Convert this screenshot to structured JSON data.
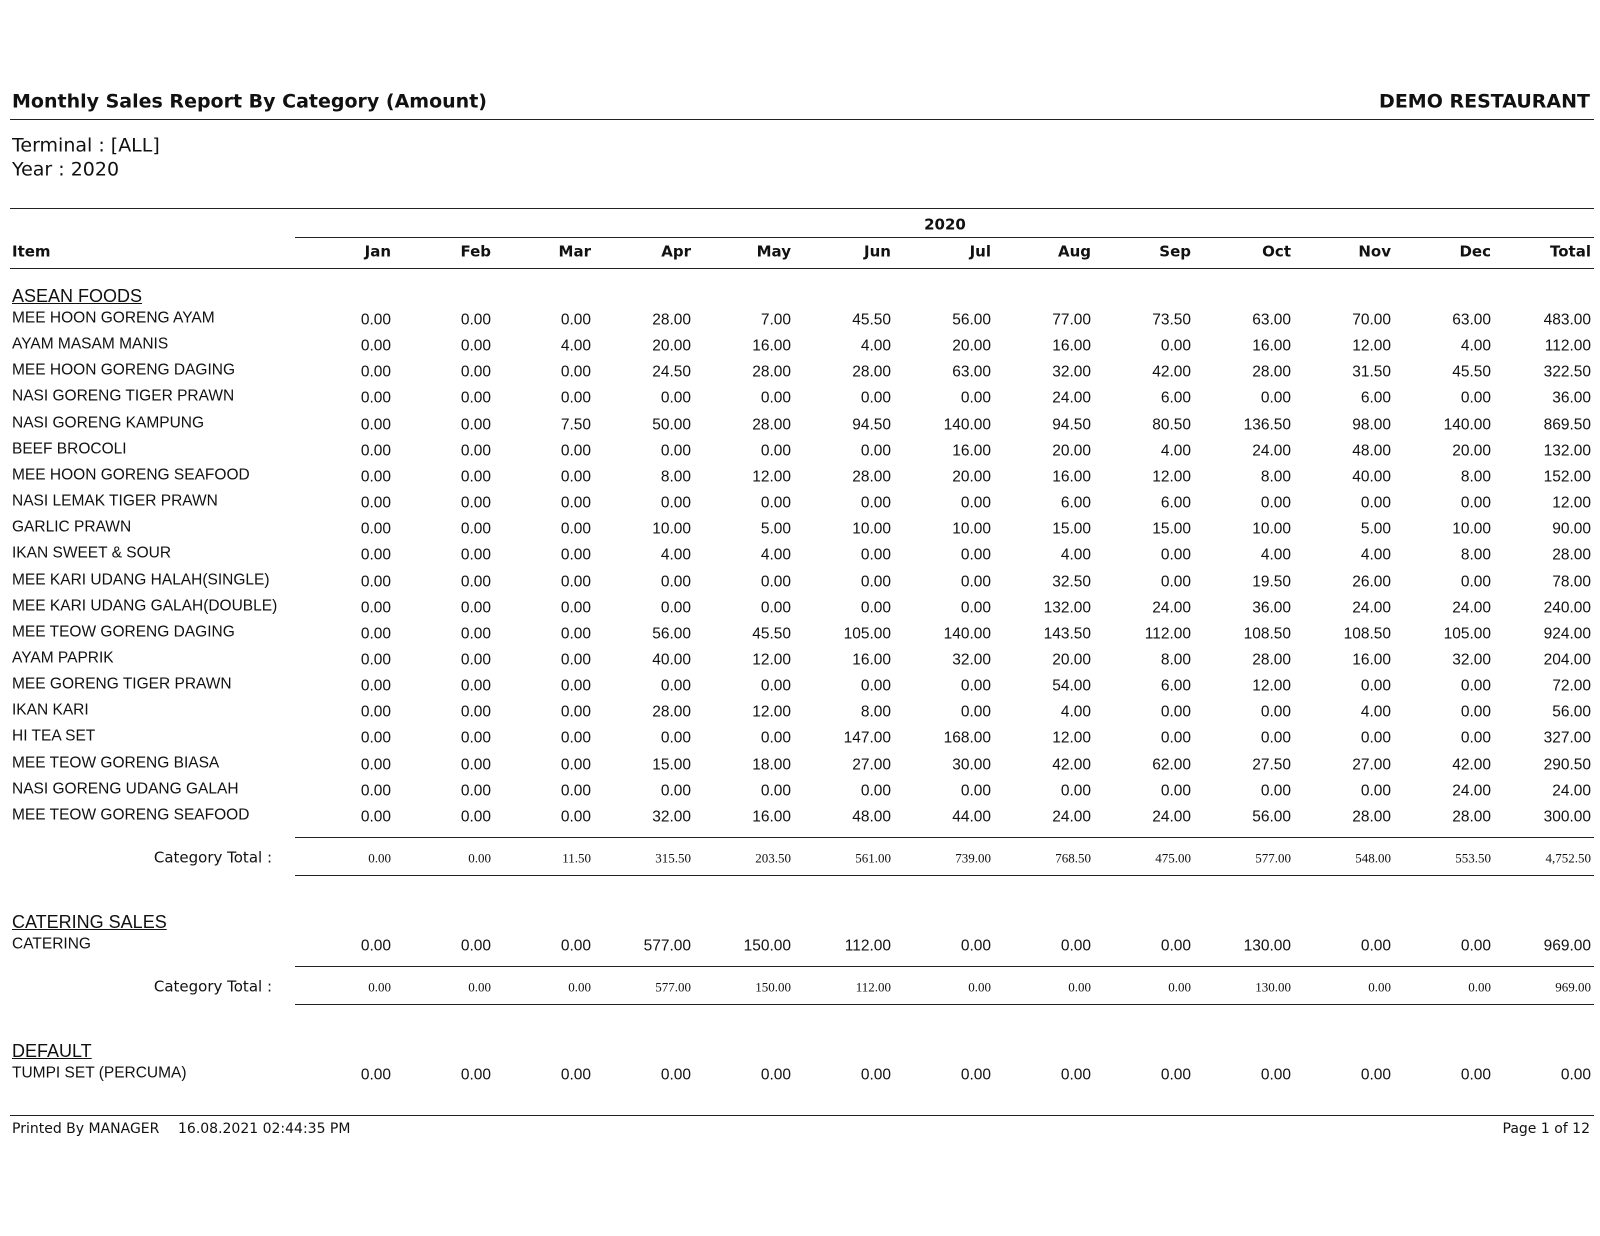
{
  "header": {
    "title": "Monthly Sales Report By Category (Amount)",
    "company": "DEMO RESTAURANT"
  },
  "filters": [
    "Terminal : [ALL]",
    "Year : 2020"
  ],
  "table": {
    "year_header": "2020",
    "columns": [
      "Item",
      "Jan",
      "Feb",
      "Mar",
      "Apr",
      "May",
      "Jun",
      "Jul",
      "Aug",
      "Sep",
      "Oct",
      "Nov",
      "Dec",
      "Total"
    ],
    "sections": [
      {
        "name": "ASEAN FOODS",
        "rows": [
          {
            "item": "MEE HOON GORENG AYAM",
            "values": [
              "0.00",
              "0.00",
              "0.00",
              "28.00",
              "7.00",
              "45.50",
              "56.00",
              "77.00",
              "73.50",
              "63.00",
              "70.00",
              "63.00",
              "483.00"
            ]
          },
          {
            "item": "AYAM MASAM MANIS",
            "values": [
              "0.00",
              "0.00",
              "4.00",
              "20.00",
              "16.00",
              "4.00",
              "20.00",
              "16.00",
              "0.00",
              "16.00",
              "12.00",
              "4.00",
              "112.00"
            ]
          },
          {
            "item": "MEE HOON GORENG DAGING",
            "values": [
              "0.00",
              "0.00",
              "0.00",
              "24.50",
              "28.00",
              "28.00",
              "63.00",
              "32.00",
              "42.00",
              "28.00",
              "31.50",
              "45.50",
              "322.50"
            ]
          },
          {
            "item": "NASI GORENG TIGER PRAWN",
            "values": [
              "0.00",
              "0.00",
              "0.00",
              "0.00",
              "0.00",
              "0.00",
              "0.00",
              "24.00",
              "6.00",
              "0.00",
              "6.00",
              "0.00",
              "36.00"
            ]
          },
          {
            "item": "NASI GORENG KAMPUNG",
            "values": [
              "0.00",
              "0.00",
              "7.50",
              "50.00",
              "28.00",
              "94.50",
              "140.00",
              "94.50",
              "80.50",
              "136.50",
              "98.00",
              "140.00",
              "869.50"
            ]
          },
          {
            "item": "BEEF BROCOLI",
            "values": [
              "0.00",
              "0.00",
              "0.00",
              "0.00",
              "0.00",
              "0.00",
              "16.00",
              "20.00",
              "4.00",
              "24.00",
              "48.00",
              "20.00",
              "132.00"
            ]
          },
          {
            "item": "MEE HOON GORENG SEAFOOD",
            "values": [
              "0.00",
              "0.00",
              "0.00",
              "8.00",
              "12.00",
              "28.00",
              "20.00",
              "16.00",
              "12.00",
              "8.00",
              "40.00",
              "8.00",
              "152.00"
            ]
          },
          {
            "item": "NASI LEMAK TIGER PRAWN",
            "values": [
              "0.00",
              "0.00",
              "0.00",
              "0.00",
              "0.00",
              "0.00",
              "0.00",
              "6.00",
              "6.00",
              "0.00",
              "0.00",
              "0.00",
              "12.00"
            ]
          },
          {
            "item": "GARLIC PRAWN",
            "values": [
              "0.00",
              "0.00",
              "0.00",
              "10.00",
              "5.00",
              "10.00",
              "10.00",
              "15.00",
              "15.00",
              "10.00",
              "5.00",
              "10.00",
              "90.00"
            ]
          },
          {
            "item": "IKAN SWEET & SOUR",
            "values": [
              "0.00",
              "0.00",
              "0.00",
              "4.00",
              "4.00",
              "0.00",
              "0.00",
              "4.00",
              "0.00",
              "4.00",
              "4.00",
              "8.00",
              "28.00"
            ]
          },
          {
            "item": "MEE KARI UDANG HALAH(SINGLE)",
            "values": [
              "0.00",
              "0.00",
              "0.00",
              "0.00",
              "0.00",
              "0.00",
              "0.00",
              "32.50",
              "0.00",
              "19.50",
              "26.00",
              "0.00",
              "78.00"
            ]
          },
          {
            "item": "MEE KARI UDANG GALAH(DOUBLE)",
            "values": [
              "0.00",
              "0.00",
              "0.00",
              "0.00",
              "0.00",
              "0.00",
              "0.00",
              "132.00",
              "24.00",
              "36.00",
              "24.00",
              "24.00",
              "240.00"
            ]
          },
          {
            "item": "MEE TEOW GORENG DAGING",
            "values": [
              "0.00",
              "0.00",
              "0.00",
              "56.00",
              "45.50",
              "105.00",
              "140.00",
              "143.50",
              "112.00",
              "108.50",
              "108.50",
              "105.00",
              "924.00"
            ]
          },
          {
            "item": "AYAM PAPRIK",
            "values": [
              "0.00",
              "0.00",
              "0.00",
              "40.00",
              "12.00",
              "16.00",
              "32.00",
              "20.00",
              "8.00",
              "28.00",
              "16.00",
              "32.00",
              "204.00"
            ]
          },
          {
            "item": "MEE GORENG TIGER PRAWN",
            "values": [
              "0.00",
              "0.00",
              "0.00",
              "0.00",
              "0.00",
              "0.00",
              "0.00",
              "54.00",
              "6.00",
              "12.00",
              "0.00",
              "0.00",
              "72.00"
            ]
          },
          {
            "item": "IKAN KARI",
            "values": [
              "0.00",
              "0.00",
              "0.00",
              "28.00",
              "12.00",
              "8.00",
              "0.00",
              "4.00",
              "0.00",
              "0.00",
              "4.00",
              "0.00",
              "56.00"
            ]
          },
          {
            "item": "HI TEA SET",
            "values": [
              "0.00",
              "0.00",
              "0.00",
              "0.00",
              "0.00",
              "147.00",
              "168.00",
              "12.00",
              "0.00",
              "0.00",
              "0.00",
              "0.00",
              "327.00"
            ]
          },
          {
            "item": "MEE TEOW GORENG BIASA",
            "values": [
              "0.00",
              "0.00",
              "0.00",
              "15.00",
              "18.00",
              "27.00",
              "30.00",
              "42.00",
              "62.00",
              "27.50",
              "27.00",
              "42.00",
              "290.50"
            ]
          },
          {
            "item": "NASI GORENG UDANG GALAH",
            "values": [
              "0.00",
              "0.00",
              "0.00",
              "0.00",
              "0.00",
              "0.00",
              "0.00",
              "0.00",
              "0.00",
              "0.00",
              "0.00",
              "24.00",
              "24.00"
            ]
          },
          {
            "item": "MEE TEOW GORENG SEAFOOD",
            "values": [
              "0.00",
              "0.00",
              "0.00",
              "32.00",
              "16.00",
              "48.00",
              "44.00",
              "24.00",
              "24.00",
              "56.00",
              "28.00",
              "28.00",
              "300.00"
            ]
          }
        ],
        "total_label": "Category Total :",
        "totals": [
          "0.00",
          "0.00",
          "11.50",
          "315.50",
          "203.50",
          "561.00",
          "739.00",
          "768.50",
          "475.00",
          "577.00",
          "548.00",
          "553.50",
          "4,752.50"
        ]
      },
      {
        "name": "CATERING SALES",
        "rows": [
          {
            "item": "CATERING",
            "values": [
              "0.00",
              "0.00",
              "0.00",
              "577.00",
              "150.00",
              "112.00",
              "0.00",
              "0.00",
              "0.00",
              "130.00",
              "0.00",
              "0.00",
              "969.00"
            ]
          }
        ],
        "total_label": "Category Total :",
        "totals": [
          "0.00",
          "0.00",
          "0.00",
          "577.00",
          "150.00",
          "112.00",
          "0.00",
          "0.00",
          "0.00",
          "130.00",
          "0.00",
          "0.00",
          "969.00"
        ]
      },
      {
        "name": "DEFAULT",
        "rows": [
          {
            "item": "TUMPI SET (PERCUMA)",
            "values": [
              "0.00",
              "0.00",
              "0.00",
              "0.00",
              "0.00",
              "0.00",
              "0.00",
              "0.00",
              "0.00",
              "0.00",
              "0.00",
              "0.00",
              "0.00"
            ]
          }
        ]
      }
    ]
  },
  "footer": {
    "printed_by": "Printed By MANAGER",
    "printed_at": "16.08.2021 02:44:35 PM",
    "page": "Page 1 of 12"
  }
}
